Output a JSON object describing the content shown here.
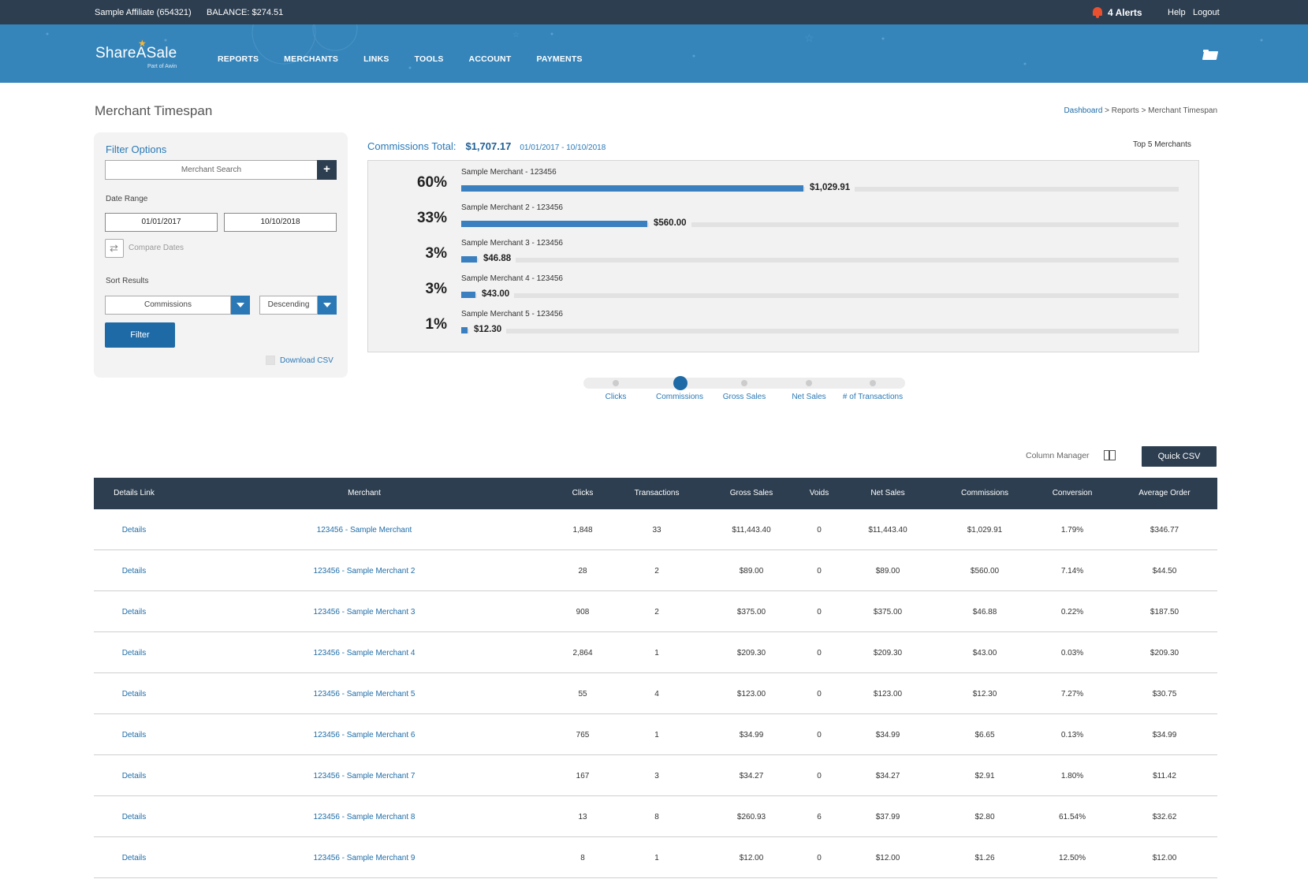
{
  "topbar": {
    "account": "Sample Affiliate (654321)",
    "balance": "BALANCE: $274.51",
    "alerts": "4 Alerts",
    "help": "Help",
    "logout": "Logout"
  },
  "brand": {
    "name": "ShareASale",
    "sub": "Part of Awin"
  },
  "nav": {
    "items": [
      "REPORTS",
      "MERCHANTS",
      "LINKS",
      "TOOLS",
      "ACCOUNT",
      "PAYMENTS"
    ]
  },
  "page": {
    "title": "Merchant Timespan",
    "breadcrumb": {
      "dashboard": "Dashboard",
      "rest": " > Reports > Merchant Timespan"
    }
  },
  "filter": {
    "title": "Filter Options",
    "search_placeholder": "Merchant Search",
    "add_label": "+",
    "date_range_label": "Date Range",
    "start_date": "01/01/2017",
    "end_date": "10/10/2018",
    "compare_label": "Compare Dates",
    "sort_label": "Sort Results",
    "sort_by": "Commissions",
    "sort_order": "Descending",
    "button": "Filter",
    "download": "Download CSV"
  },
  "summary": {
    "label": "Commissions Total:",
    "amount": "$1,707.17",
    "dates": "01/01/2017 - 10/10/2018",
    "top_label": "Top 5 Merchants"
  },
  "chart_data": {
    "type": "bar",
    "categories": [
      "Sample Merchant - 123456",
      "Sample Merchant 2 - 123456",
      "Sample Merchant 3 - 123456",
      "Sample Merchant 4 - 123456",
      "Sample Merchant 5 - 123456"
    ],
    "values": [
      1029.91,
      560.0,
      46.88,
      43.0,
      12.3
    ],
    "value_labels": [
      "$1,029.91",
      "$560.00",
      "$46.88",
      "$43.00",
      "$12.30"
    ],
    "percent_labels": [
      "60%",
      "33%",
      "3%",
      "3%",
      "1%"
    ],
    "percent_values": [
      60,
      33,
      3,
      3,
      1
    ],
    "xlim": [
      0,
      1707.17
    ],
    "accent": "#3a7fc0"
  },
  "metrics": {
    "items": [
      "Clicks",
      "Commissions",
      "Gross Sales",
      "Net Sales",
      "# of Transactions"
    ],
    "selected": "Commissions"
  },
  "table_controls": {
    "column_manager": "Column Manager",
    "quick_csv": "Quick CSV"
  },
  "table": {
    "headers": [
      "Details Link",
      "Merchant",
      "Clicks",
      "Transactions",
      "Gross Sales",
      "Voids",
      "Net Sales",
      "Commissions",
      "Conversion",
      "Average Order"
    ],
    "rows": [
      [
        "Details",
        "123456 - Sample Merchant",
        "1,848",
        "33",
        "$11,443.40",
        "0",
        "$11,443.40",
        "$1,029.91",
        "1.79%",
        "$346.77"
      ],
      [
        "Details",
        "123456 - Sample Merchant 2",
        "28",
        "2",
        "$89.00",
        "0",
        "$89.00",
        "$560.00",
        "7.14%",
        "$44.50"
      ],
      [
        "Details",
        "123456 - Sample Merchant 3",
        "908",
        "2",
        "$375.00",
        "0",
        "$375.00",
        "$46.88",
        "0.22%",
        "$187.50"
      ],
      [
        "Details",
        "123456 - Sample Merchant 4",
        "2,864",
        "1",
        "$209.30",
        "0",
        "$209.30",
        "$43.00",
        "0.03%",
        "$209.30"
      ],
      [
        "Details",
        "123456 - Sample Merchant 5",
        "55",
        "4",
        "$123.00",
        "0",
        "$123.00",
        "$12.30",
        "7.27%",
        "$30.75"
      ],
      [
        "Details",
        "123456 - Sample Merchant 6",
        "765",
        "1",
        "$34.99",
        "0",
        "$34.99",
        "$6.65",
        "0.13%",
        "$34.99"
      ],
      [
        "Details",
        "123456 - Sample Merchant 7",
        "167",
        "3",
        "$34.27",
        "0",
        "$34.27",
        "$2.91",
        "1.80%",
        "$11.42"
      ],
      [
        "Details",
        "123456 - Sample Merchant 8",
        "13",
        "8",
        "$260.93",
        "6",
        "$37.99",
        "$2.80",
        "61.54%",
        "$32.62"
      ],
      [
        "Details",
        "123456 - Sample Merchant 9",
        "8",
        "1",
        "$12.00",
        "0",
        "$12.00",
        "$1.26",
        "12.50%",
        "$12.00"
      ]
    ]
  }
}
